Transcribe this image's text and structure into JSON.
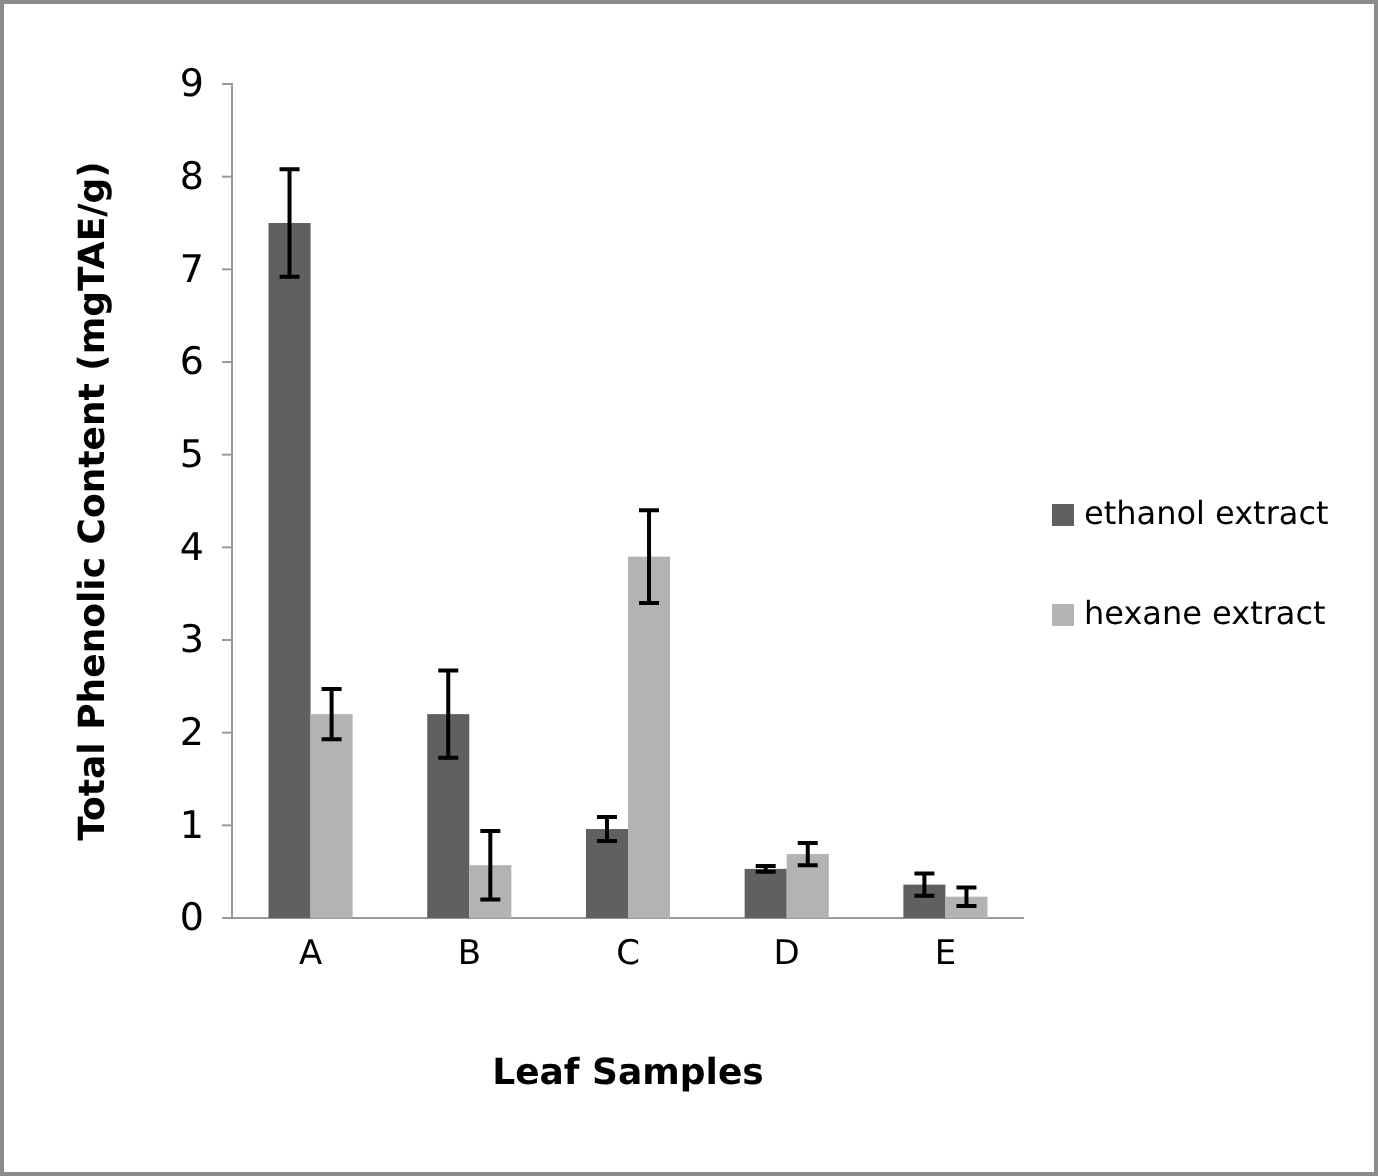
{
  "chart_data": {
    "type": "bar",
    "xlabel": "Leaf Samples",
    "ylabel": "Total Phenolic Content (mgTAE/g)",
    "categories": [
      "A",
      "B",
      "C",
      "D",
      "E"
    ],
    "series": [
      {
        "name": "ethanol extract",
        "color": "#606060",
        "values": [
          7.5,
          2.2,
          0.96,
          0.53,
          0.36
        ],
        "errors": [
          0.58,
          0.47,
          0.13,
          0.03,
          0.12
        ]
      },
      {
        "name": "hexane extract",
        "color": "#b3b3b3",
        "values": [
          2.2,
          0.57,
          3.9,
          0.69,
          0.23
        ],
        "errors": [
          0.27,
          0.37,
          0.5,
          0.12,
          0.1
        ]
      }
    ],
    "ylim": [
      0,
      9
    ],
    "yticks": [
      0,
      1,
      2,
      3,
      4,
      5,
      6,
      7,
      8,
      9
    ],
    "grid": false,
    "legend": "right"
  }
}
